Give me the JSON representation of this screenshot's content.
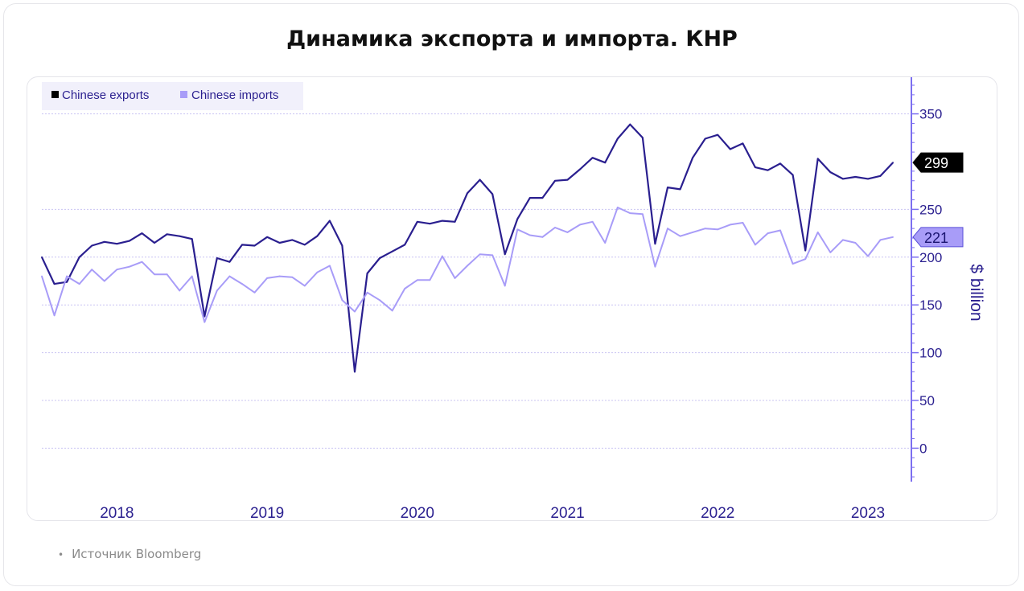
{
  "title": "Динамика экспорта и импорта. КНР",
  "source": "Источник Bloomberg",
  "chart_data": {
    "type": "line",
    "ylabel": "$ billion",
    "ylim": [
      -35,
      385
    ],
    "yticks": [
      0,
      50,
      100,
      150,
      200,
      250,
      350
    ],
    "year_labels": [
      "2018",
      "2019",
      "2020",
      "2021",
      "2022",
      "2023"
    ],
    "x_start": "2017-07",
    "legend": "top-left",
    "grid": true,
    "series": [
      {
        "name": "Chinese exports",
        "color": "#2a1f8f",
        "last_label": "299",
        "label_bg": "#000000",
        "label_fg": "#ffffff",
        "values": [
          200,
          172,
          174,
          200,
          212,
          216,
          214,
          217,
          225,
          215,
          224,
          222,
          219,
          138,
          199,
          195,
          213,
          212,
          221,
          215,
          218,
          213,
          222,
          238,
          212,
          80,
          183,
          199,
          206,
          213,
          237,
          235,
          238,
          237,
          267,
          281,
          266,
          203,
          240,
          262,
          262,
          280,
          281,
          292,
          304,
          299,
          324,
          339,
          325,
          214,
          273,
          271,
          304,
          324,
          328,
          313,
          319,
          294,
          291,
          298,
          286,
          207,
          303,
          289,
          282,
          284,
          282,
          285,
          299
        ]
      },
      {
        "name": "Chinese imports",
        "color": "#a89cf8",
        "last_label": "221",
        "label_bg": "#a89cf8",
        "label_fg": "#1a1470",
        "values": [
          180,
          139,
          180,
          172,
          187,
          175,
          187,
          190,
          195,
          182,
          182,
          165,
          180,
          132,
          165,
          180,
          172,
          163,
          178,
          180,
          179,
          170,
          184,
          191,
          155,
          143,
          163,
          155,
          144,
          167,
          176,
          176,
          201,
          178,
          191,
          203,
          202,
          170,
          229,
          223,
          221,
          231,
          226,
          234,
          237,
          215,
          252,
          246,
          245,
          190,
          230,
          222,
          226,
          230,
          229,
          234,
          236,
          213,
          225,
          228,
          193,
          198,
          226,
          205,
          218,
          215,
          201,
          218,
          221
        ]
      }
    ]
  }
}
